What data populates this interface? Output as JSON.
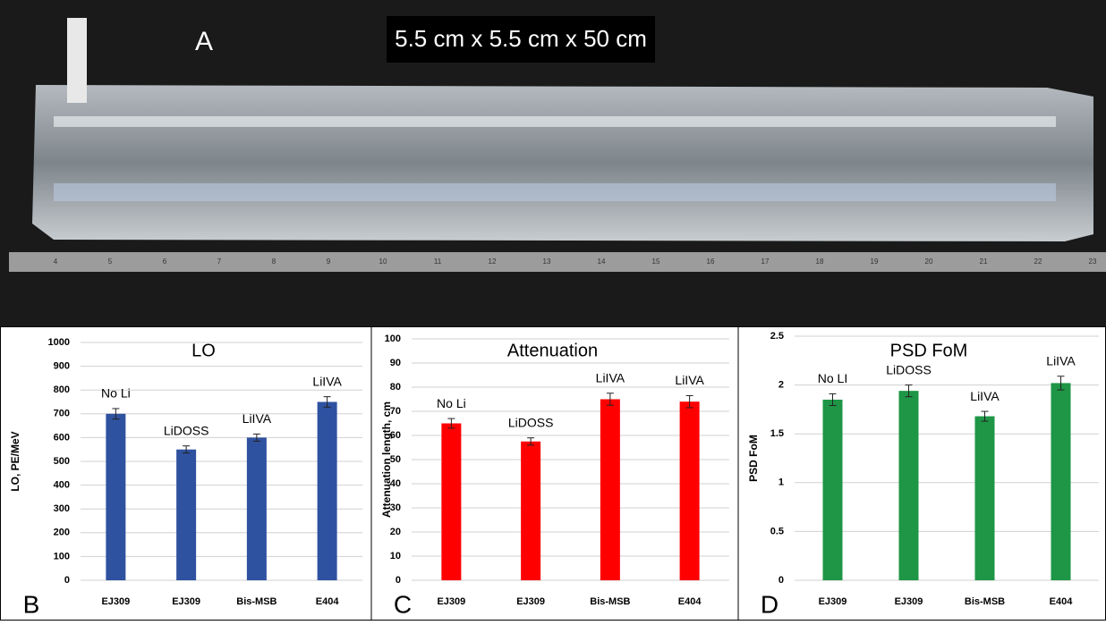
{
  "photo": {
    "label": "A",
    "caption": "5.5 cm x 5.5 cm x 50 cm",
    "ruler_labels": [
      "4",
      "5",
      "6",
      "7",
      "8",
      "9",
      "10",
      "11",
      "12",
      "13",
      "14",
      "15",
      "16",
      "17",
      "18",
      "19",
      "20",
      "21",
      "22",
      "23"
    ]
  },
  "chart_data": [
    {
      "type": "bar",
      "panel": "B",
      "title": "LO",
      "y_label": "LO, PE/MeV",
      "categories": [
        "EJ309",
        "EJ309",
        "Bis-MSB",
        "E404"
      ],
      "annotations": [
        "No Li",
        "LiDOSS",
        "LiIVA",
        "LiIVA"
      ],
      "values": [
        700,
        550,
        600,
        750
      ],
      "errors": [
        22,
        15,
        15,
        22
      ],
      "color": "#2f52a0",
      "ylim": [
        0,
        1000
      ],
      "yticks": [
        0,
        100,
        200,
        300,
        400,
        500,
        600,
        700,
        800,
        900,
        1000
      ],
      "grid": true
    },
    {
      "type": "bar",
      "panel": "C",
      "title": "Attenuation",
      "y_label": "Attenuation length, cm",
      "categories": [
        "EJ309",
        "EJ309",
        "Bis-MSB",
        "E404"
      ],
      "annotations": [
        "No Li",
        "LiDOSS",
        "LiIVA",
        "LiIVA"
      ],
      "values": [
        65,
        57.5,
        75,
        74
      ],
      "errors": [
        2,
        1.5,
        2.5,
        2.5
      ],
      "color": "#ff0000",
      "ylim": [
        0,
        100
      ],
      "yticks": [
        0,
        10,
        20,
        30,
        40,
        50,
        60,
        70,
        80,
        90,
        100
      ],
      "grid": true
    },
    {
      "type": "bar",
      "panel": "D",
      "title": "PSD FoM",
      "y_label": "PSD FoM",
      "categories": [
        "EJ309",
        "EJ309",
        "Bis-MSB",
        "E404"
      ],
      "annotations": [
        "No LI",
        "LiDOSS",
        "LiIVA",
        "LiIVA"
      ],
      "values": [
        1.85,
        1.94,
        1.68,
        2.02
      ],
      "errors": [
        0.06,
        0.06,
        0.05,
        0.07
      ],
      "color": "#1e9646",
      "ylim": [
        0,
        2.5
      ],
      "yticks": [
        0,
        0.5,
        1,
        1.5,
        2,
        2.5
      ],
      "grid": true
    }
  ]
}
